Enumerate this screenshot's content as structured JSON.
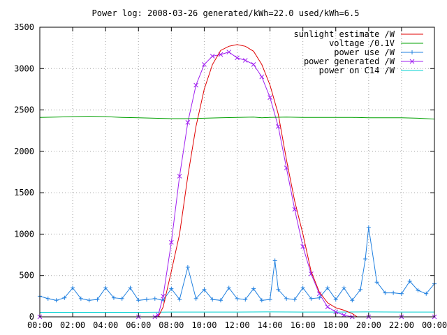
{
  "chart_data": {
    "type": "line",
    "title": "Power log: 2008-03-26 generated/kWh=22.0 used/kWh=6.5",
    "xlabel": "",
    "ylabel": "",
    "x_unit": "hours",
    "xlim": [
      0,
      24
    ],
    "ylim": [
      0,
      3500
    ],
    "x_ticks": [
      "00:00",
      "02:00",
      "04:00",
      "06:00",
      "08:00",
      "10:00",
      "12:00",
      "14:00",
      "16:00",
      "18:00",
      "20:00",
      "22:00",
      "00:00"
    ],
    "y_ticks": [
      "0",
      "500",
      "1000",
      "1500",
      "2000",
      "2500",
      "3000",
      "3500"
    ],
    "grid": true,
    "legend_position": "top-right",
    "series": [
      {
        "name": "sunlight estimate /W",
        "color": "#e00000",
        "marker": "none",
        "x": [
          7.2,
          7.5,
          8.0,
          8.5,
          9.0,
          9.5,
          10.0,
          10.5,
          11.0,
          11.5,
          12.0,
          12.5,
          13.0,
          13.5,
          14.0,
          14.5,
          15.0,
          15.5,
          16.0,
          16.5,
          17.0,
          17.5,
          18.0,
          18.5,
          19.0,
          19.3
        ],
        "y": [
          0,
          120,
          550,
          1000,
          1700,
          2300,
          2750,
          3050,
          3220,
          3270,
          3290,
          3270,
          3210,
          3050,
          2800,
          2450,
          1900,
          1400,
          1000,
          550,
          300,
          170,
          110,
          80,
          40,
          0
        ]
      },
      {
        "name": "voltage /0.1V",
        "color": "#00a000",
        "marker": "none",
        "x": [
          0,
          1,
          2,
          3,
          4,
          5,
          6,
          7,
          8,
          9,
          10,
          11,
          12,
          13,
          13.5,
          14,
          15,
          16,
          17,
          18,
          19,
          20,
          21,
          22,
          23,
          23.5,
          24
        ],
        "y": [
          2410,
          2415,
          2420,
          2425,
          2420,
          2410,
          2405,
          2400,
          2395,
          2395,
          2400,
          2405,
          2410,
          2415,
          2405,
          2410,
          2415,
          2410,
          2410,
          2410,
          2410,
          2405,
          2405,
          2405,
          2400,
          2395,
          2390
        ]
      },
      {
        "name": "power use /W",
        "color": "#2080e0",
        "marker": "plus",
        "x": [
          0.0,
          0.5,
          1.0,
          1.5,
          2.0,
          2.5,
          3.0,
          3.5,
          4.0,
          4.5,
          5.0,
          5.5,
          6.0,
          6.5,
          7.0,
          7.5,
          8.0,
          8.5,
          9.0,
          9.5,
          10.0,
          10.5,
          11.0,
          11.5,
          12.0,
          12.5,
          13.0,
          13.5,
          14.0,
          14.3,
          14.5,
          15.0,
          15.5,
          16.0,
          16.5,
          17.0,
          17.5,
          18.0,
          18.5,
          19.0,
          19.5,
          19.8,
          20.0,
          20.5,
          21.0,
          21.5,
          22.0,
          22.5,
          23.0,
          23.5,
          24.0
        ],
        "y": [
          250,
          220,
          200,
          230,
          350,
          220,
          200,
          210,
          350,
          230,
          220,
          350,
          200,
          210,
          220,
          200,
          340,
          210,
          600,
          220,
          330,
          210,
          200,
          350,
          220,
          210,
          340,
          200,
          210,
          680,
          330,
          220,
          210,
          350,
          220,
          230,
          350,
          210,
          350,
          200,
          330,
          700,
          1080,
          420,
          290,
          290,
          280,
          430,
          320,
          280,
          400
        ]
      },
      {
        "name": "power generated /W",
        "color": "#a020f0",
        "marker": "cross",
        "x": [
          0,
          6.0,
          7.0,
          7.2,
          7.5,
          8.0,
          8.5,
          9.0,
          9.5,
          10.0,
          10.5,
          11.0,
          11.5,
          12.0,
          12.5,
          13.0,
          13.5,
          14.0,
          14.5,
          15.0,
          15.5,
          16.0,
          16.5,
          17.0,
          17.5,
          18.0,
          18.5,
          19.0,
          20.0,
          22.0,
          24.0
        ],
        "y": [
          0,
          0,
          0,
          20,
          250,
          900,
          1700,
          2350,
          2800,
          3050,
          3150,
          3170,
          3200,
          3130,
          3100,
          3050,
          2900,
          2650,
          2300,
          1800,
          1300,
          850,
          520,
          280,
          120,
          60,
          20,
          0,
          0,
          0,
          0
        ]
      },
      {
        "name": "power on C14 /W",
        "color": "#00d0d0",
        "marker": "none",
        "x": [
          0,
          2,
          4,
          6,
          8,
          10,
          12,
          14,
          16,
          18,
          20,
          22,
          24
        ],
        "y": [
          55,
          55,
          55,
          55,
          58,
          58,
          58,
          60,
          58,
          58,
          60,
          58,
          58
        ]
      }
    ]
  }
}
